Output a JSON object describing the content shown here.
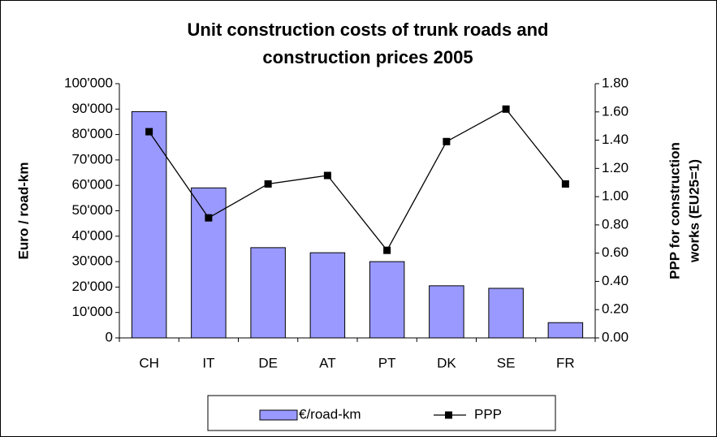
{
  "chart_data": {
    "type": "bar_line",
    "title": [
      "Unit construction costs of trunk roads and",
      "construction prices 2005"
    ],
    "ylabel": [
      "Euro / road-km"
    ],
    "y2label": [
      "PPP for construction",
      "works (EU25=1)"
    ],
    "categories": [
      "CH",
      "IT",
      "DE",
      "AT",
      "PT",
      "DK",
      "SE",
      "FR"
    ],
    "series": [
      {
        "name": "€/road-km",
        "type": "bar",
        "color": "#9999ff",
        "values": [
          89000,
          59000,
          35500,
          33500,
          30000,
          20500,
          19500,
          6000
        ]
      },
      {
        "name": "PPP",
        "type": "line",
        "color": "#000000",
        "axis": "y2",
        "values": [
          1.46,
          0.85,
          1.09,
          1.15,
          0.62,
          1.39,
          1.62,
          1.09
        ]
      }
    ],
    "ylim": [
      0,
      100000
    ],
    "yticks": [
      0,
      {
        "value": 10000,
        "label": "10'000"
      },
      {
        "value": 20000,
        "label": "20'000"
      },
      {
        "value": 30000,
        "label": "30'000"
      },
      {
        "value": 40000,
        "label": "40'000"
      },
      {
        "value": 50000,
        "label": "50'000"
      },
      {
        "value": 60000,
        "label": "60'000"
      },
      {
        "value": 70000,
        "label": "70'000"
      },
      {
        "value": 80000,
        "label": "80'000"
      },
      {
        "value": 90000,
        "label": "90'000"
      },
      {
        "value": 100000,
        "label": "100'000"
      }
    ],
    "y2lim": [
      0,
      1.8
    ],
    "y2ticks": [
      {
        "value": 0,
        "label": "0.00"
      },
      {
        "value": 0.2,
        "label": "0.20"
      },
      {
        "value": 0.4,
        "label": "0.40"
      },
      {
        "value": 0.6,
        "label": "0.60"
      },
      {
        "value": 0.8,
        "label": "0.80"
      },
      {
        "value": 1.0,
        "label": "1.00"
      },
      {
        "value": 1.2,
        "label": "1.20"
      },
      {
        "value": 1.4,
        "label": "1.40"
      },
      {
        "value": 1.6,
        "label": "1.60"
      },
      {
        "value": 1.8,
        "label": "1.80"
      }
    ],
    "grid": false,
    "legend": "bottom"
  }
}
